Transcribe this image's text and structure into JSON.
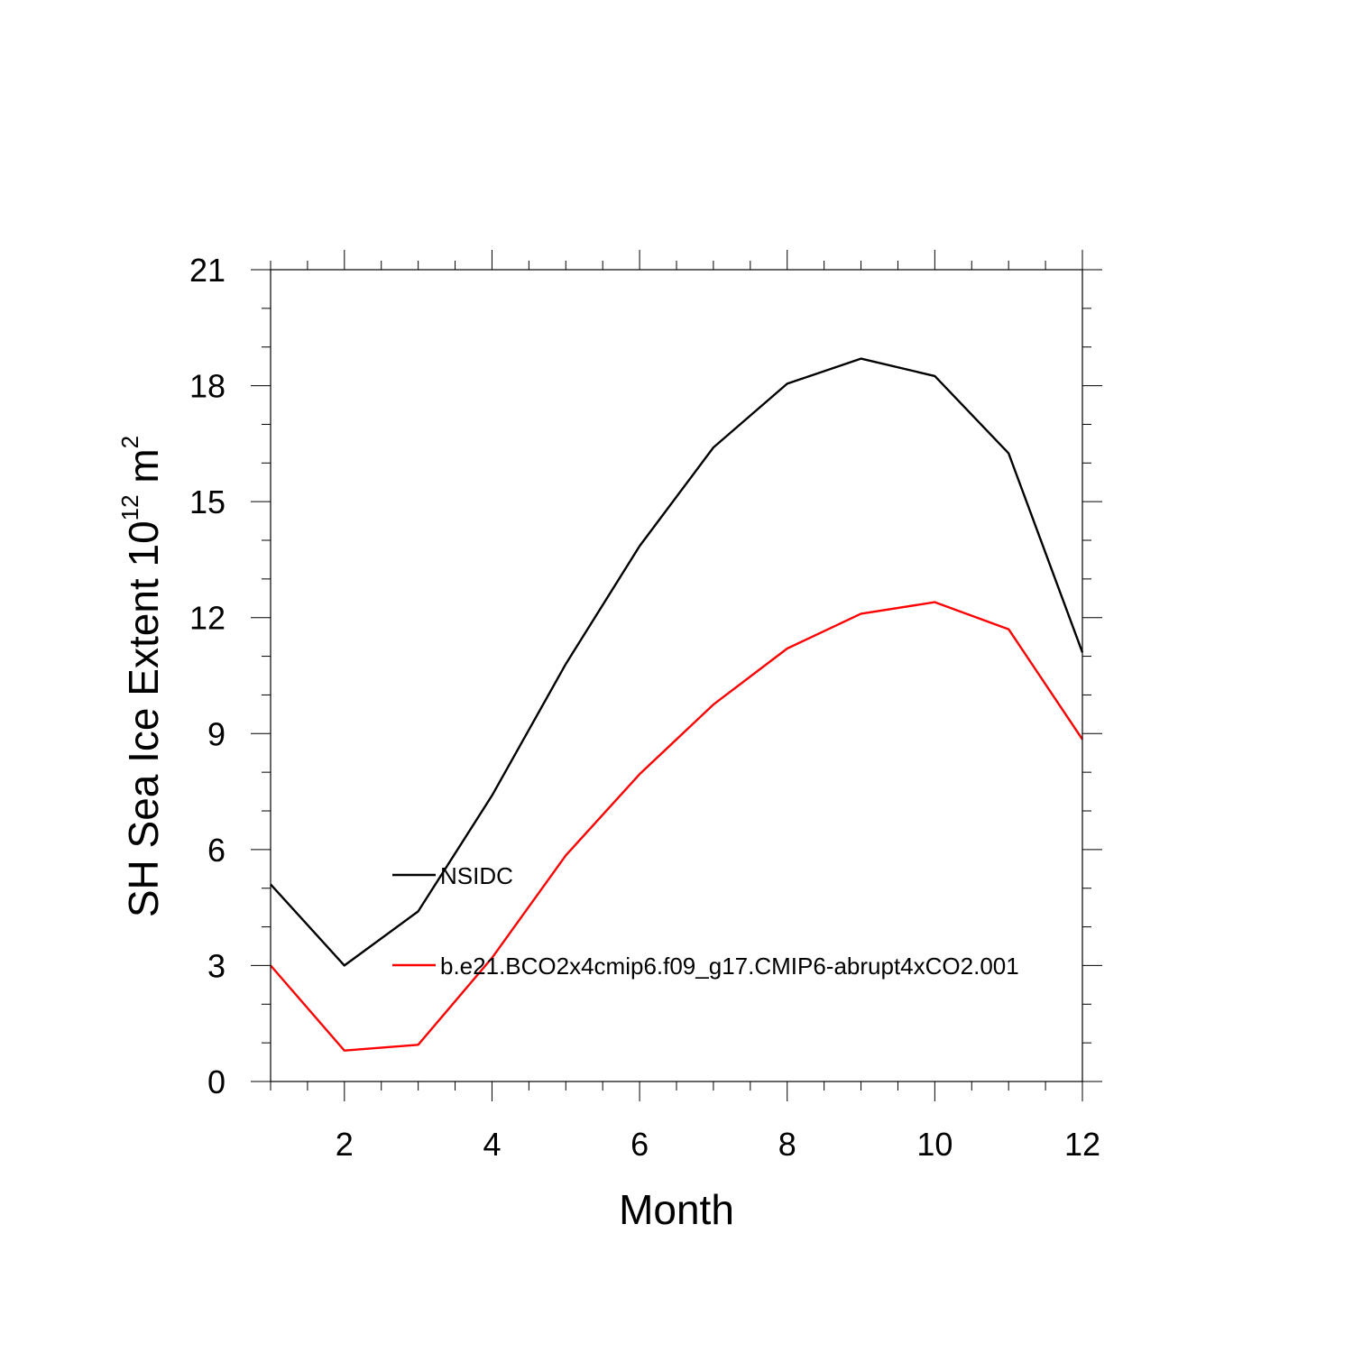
{
  "chart_data": {
    "type": "line",
    "title": "",
    "xlabel": "Month",
    "ylabel_main": "SH Sea Ice Extent 10",
    "ylabel_exp1": "12",
    "ylabel_unit": " m",
    "ylabel_exp2": "2",
    "xlim": [
      1,
      12
    ],
    "ylim": [
      0,
      21
    ],
    "x_ticks": [
      2,
      4,
      6,
      8,
      10,
      12
    ],
    "y_ticks": [
      0,
      3,
      6,
      9,
      12,
      15,
      18,
      21
    ],
    "x": [
      1,
      2,
      3,
      4,
      5,
      6,
      7,
      8,
      9,
      10,
      11,
      12
    ],
    "series": [
      {
        "name": "NSIDC",
        "color": "#000000",
        "values": [
          5.1,
          3.0,
          4.4,
          7.4,
          10.8,
          13.85,
          16.4,
          18.05,
          18.7,
          18.25,
          16.25,
          11.1
        ]
      },
      {
        "name": "b.e21.BCO2x4cmip6.f09_g17.CMIP6-abrupt4xCO2.001",
        "color": "#ff0000",
        "values": [
          3.0,
          0.8,
          0.95,
          3.2,
          5.85,
          7.95,
          9.75,
          11.2,
          12.1,
          12.4,
          11.7,
          8.85
        ]
      }
    ],
    "legend_position": "lower-left inside plot"
  }
}
